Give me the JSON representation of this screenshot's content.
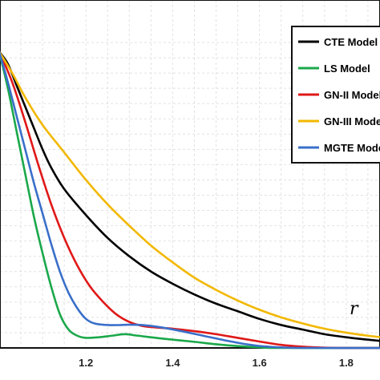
{
  "chart_data": {
    "type": "line",
    "xlabel": "r",
    "xlim": [
      1.0,
      1.9
    ],
    "ylim": [
      0,
      1
    ],
    "grid": true,
    "legend_position": "top-right",
    "x_ticks": [
      "1.2",
      "1.4",
      "1.6",
      "1.8"
    ],
    "x_tick_values": [
      1.2,
      1.4,
      1.6,
      1.8
    ],
    "series": [
      {
        "name": "CTE Model",
        "color": "#000000",
        "points": [
          [
            1.0,
            0.97
          ],
          [
            1.02,
            0.93
          ],
          [
            1.04,
            0.86
          ],
          [
            1.06,
            0.79
          ],
          [
            1.08,
            0.72
          ],
          [
            1.1,
            0.65
          ],
          [
            1.12,
            0.59
          ],
          [
            1.15,
            0.52
          ],
          [
            1.2,
            0.435
          ],
          [
            1.25,
            0.36
          ],
          [
            1.3,
            0.3
          ],
          [
            1.35,
            0.25
          ],
          [
            1.4,
            0.21
          ],
          [
            1.45,
            0.175
          ],
          [
            1.5,
            0.145
          ],
          [
            1.55,
            0.12
          ],
          [
            1.6,
            0.095
          ],
          [
            1.65,
            0.075
          ],
          [
            1.7,
            0.06
          ],
          [
            1.75,
            0.045
          ],
          [
            1.8,
            0.035
          ],
          [
            1.85,
            0.027
          ],
          [
            1.9,
            0.02
          ]
        ]
      },
      {
        "name": "LS Model",
        "color": "#1aa84a",
        "points": [
          [
            1.0,
            0.97
          ],
          [
            1.02,
            0.85
          ],
          [
            1.04,
            0.71
          ],
          [
            1.06,
            0.57
          ],
          [
            1.08,
            0.43
          ],
          [
            1.1,
            0.31
          ],
          [
            1.12,
            0.2
          ],
          [
            1.14,
            0.11
          ],
          [
            1.16,
            0.06
          ],
          [
            1.18,
            0.04
          ],
          [
            1.2,
            0.033
          ],
          [
            1.23,
            0.035
          ],
          [
            1.26,
            0.04
          ],
          [
            1.29,
            0.045
          ],
          [
            1.32,
            0.04
          ],
          [
            1.38,
            0.03
          ],
          [
            1.45,
            0.02
          ],
          [
            1.5,
            0.012
          ],
          [
            1.55,
            0.006
          ],
          [
            1.6,
            0.002
          ],
          [
            1.65,
            0.0
          ],
          [
            1.9,
            0.0
          ]
        ]
      },
      {
        "name": "GN-II Model",
        "color": "#e01818",
        "points": [
          [
            1.0,
            0.97
          ],
          [
            1.03,
            0.87
          ],
          [
            1.06,
            0.74
          ],
          [
            1.09,
            0.6
          ],
          [
            1.12,
            0.47
          ],
          [
            1.15,
            0.36
          ],
          [
            1.18,
            0.27
          ],
          [
            1.21,
            0.2
          ],
          [
            1.24,
            0.15
          ],
          [
            1.27,
            0.11
          ],
          [
            1.3,
            0.085
          ],
          [
            1.33,
            0.072
          ],
          [
            1.37,
            0.066
          ],
          [
            1.4,
            0.063
          ],
          [
            1.45,
            0.055
          ],
          [
            1.5,
            0.045
          ],
          [
            1.55,
            0.033
          ],
          [
            1.6,
            0.021
          ],
          [
            1.65,
            0.01
          ],
          [
            1.7,
            0.004
          ],
          [
            1.75,
            0.001
          ],
          [
            1.8,
            0.0
          ],
          [
            1.9,
            0.0
          ]
        ]
      },
      {
        "name": "GN-III Model",
        "color": "#f2b800",
        "points": [
          [
            1.0,
            0.97
          ],
          [
            1.03,
            0.9
          ],
          [
            1.06,
            0.82
          ],
          [
            1.1,
            0.73
          ],
          [
            1.15,
            0.64
          ],
          [
            1.2,
            0.55
          ],
          [
            1.25,
            0.47
          ],
          [
            1.3,
            0.4
          ],
          [
            1.35,
            0.335
          ],
          [
            1.4,
            0.28
          ],
          [
            1.45,
            0.23
          ],
          [
            1.5,
            0.19
          ],
          [
            1.55,
            0.155
          ],
          [
            1.6,
            0.125
          ],
          [
            1.65,
            0.1
          ],
          [
            1.7,
            0.08
          ],
          [
            1.75,
            0.063
          ],
          [
            1.8,
            0.05
          ],
          [
            1.85,
            0.04
          ],
          [
            1.9,
            0.032
          ]
        ]
      },
      {
        "name": "MGTE Model",
        "color": "#3a6fc9",
        "points": [
          [
            1.0,
            0.97
          ],
          [
            1.02,
            0.87
          ],
          [
            1.04,
            0.76
          ],
          [
            1.06,
            0.65
          ],
          [
            1.08,
            0.54
          ],
          [
            1.1,
            0.44
          ],
          [
            1.12,
            0.34
          ],
          [
            1.14,
            0.25
          ],
          [
            1.16,
            0.18
          ],
          [
            1.18,
            0.13
          ],
          [
            1.2,
            0.095
          ],
          [
            1.22,
            0.08
          ],
          [
            1.25,
            0.075
          ],
          [
            1.28,
            0.075
          ],
          [
            1.3,
            0.076
          ],
          [
            1.33,
            0.075
          ],
          [
            1.37,
            0.068
          ],
          [
            1.42,
            0.055
          ],
          [
            1.47,
            0.04
          ],
          [
            1.52,
            0.025
          ],
          [
            1.57,
            0.012
          ],
          [
            1.62,
            0.004
          ],
          [
            1.7,
            0.0
          ],
          [
            1.9,
            0.0
          ]
        ]
      }
    ]
  }
}
